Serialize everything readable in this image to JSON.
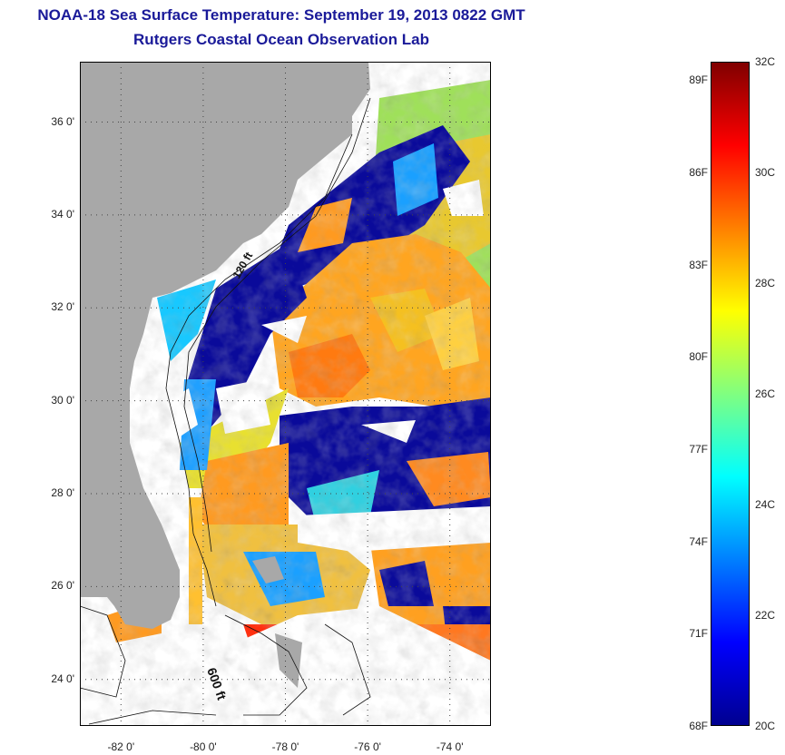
{
  "title": "NOAA-18 Sea Surface Temperature:  September 19, 2013 0822 GMT",
  "subtitle": "Rutgers Coastal Ocean Observation Lab",
  "map": {
    "lat_range": [
      23,
      37.3
    ],
    "lon_range": [
      -83,
      -73
    ],
    "y_ticks": [
      {
        "value": 36,
        "label": "36 0'"
      },
      {
        "value": 34,
        "label": "34 0'"
      },
      {
        "value": 32,
        "label": "32 0'"
      },
      {
        "value": 30,
        "label": "30 0'"
      },
      {
        "value": 28,
        "label": "28 0'"
      },
      {
        "value": 26,
        "label": "26 0'"
      },
      {
        "value": 24,
        "label": "24 0'"
      }
    ],
    "x_ticks": [
      {
        "value": -82,
        "label": "-82 0'"
      },
      {
        "value": -80,
        "label": "-80 0'"
      },
      {
        "value": -78,
        "label": "-78 0'"
      },
      {
        "value": -76,
        "label": "-76 0'"
      },
      {
        "value": -74,
        "label": "-74 0'"
      }
    ],
    "contour_labels": {
      "c1": "120 ft",
      "c2": "600 ft"
    },
    "colors": {
      "land": "#a8a8a8",
      "missing": "#ffffff"
    }
  },
  "colorbar": {
    "min_c": 20,
    "max_c": 32,
    "celsius_labels": [
      {
        "value": 32,
        "label": "32C"
      },
      {
        "value": 30,
        "label": "30C"
      },
      {
        "value": 28,
        "label": "28C"
      },
      {
        "value": 26,
        "label": "26C"
      },
      {
        "value": 24,
        "label": "24C"
      },
      {
        "value": 22,
        "label": "22C"
      },
      {
        "value": 20,
        "label": "20C"
      }
    ],
    "fahrenheit_labels": [
      {
        "value": 89,
        "label": "89F"
      },
      {
        "value": 86,
        "label": "86F"
      },
      {
        "value": 83,
        "label": "83F"
      },
      {
        "value": 80,
        "label": "80F"
      },
      {
        "value": 77,
        "label": "77F"
      },
      {
        "value": 74,
        "label": "74F"
      },
      {
        "value": 71,
        "label": "71F"
      },
      {
        "value": 68,
        "label": "68F"
      }
    ],
    "colors": [
      "#000090",
      "#0000ff",
      "#0080ff",
      "#00ffff",
      "#80ff80",
      "#ffff00",
      "#ff8000",
      "#ff0000",
      "#800000"
    ]
  }
}
